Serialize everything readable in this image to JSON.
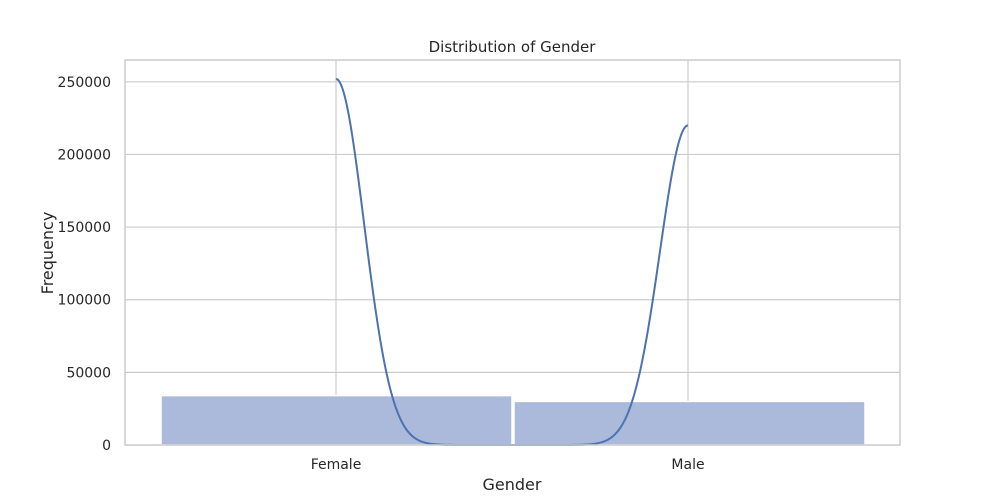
{
  "chart_data": {
    "type": "bar",
    "title": "Distribution of Gender",
    "xlabel": "Gender",
    "ylabel": "Frequency",
    "categories": [
      "Female",
      "Male"
    ],
    "values": [
      34000,
      30000
    ],
    "ylim": [
      0,
      265000
    ],
    "yticks": [
      0,
      50000,
      100000,
      150000,
      200000,
      250000
    ],
    "grid": true,
    "kde": {
      "peaks": [
        252000,
        220000
      ]
    },
    "colors": {
      "bar_fill": "#a6b6d9",
      "bar_stroke": "#ffffff",
      "kde_line": "#4c72b0",
      "grid": "#cccccc",
      "text": "#262626"
    }
  }
}
